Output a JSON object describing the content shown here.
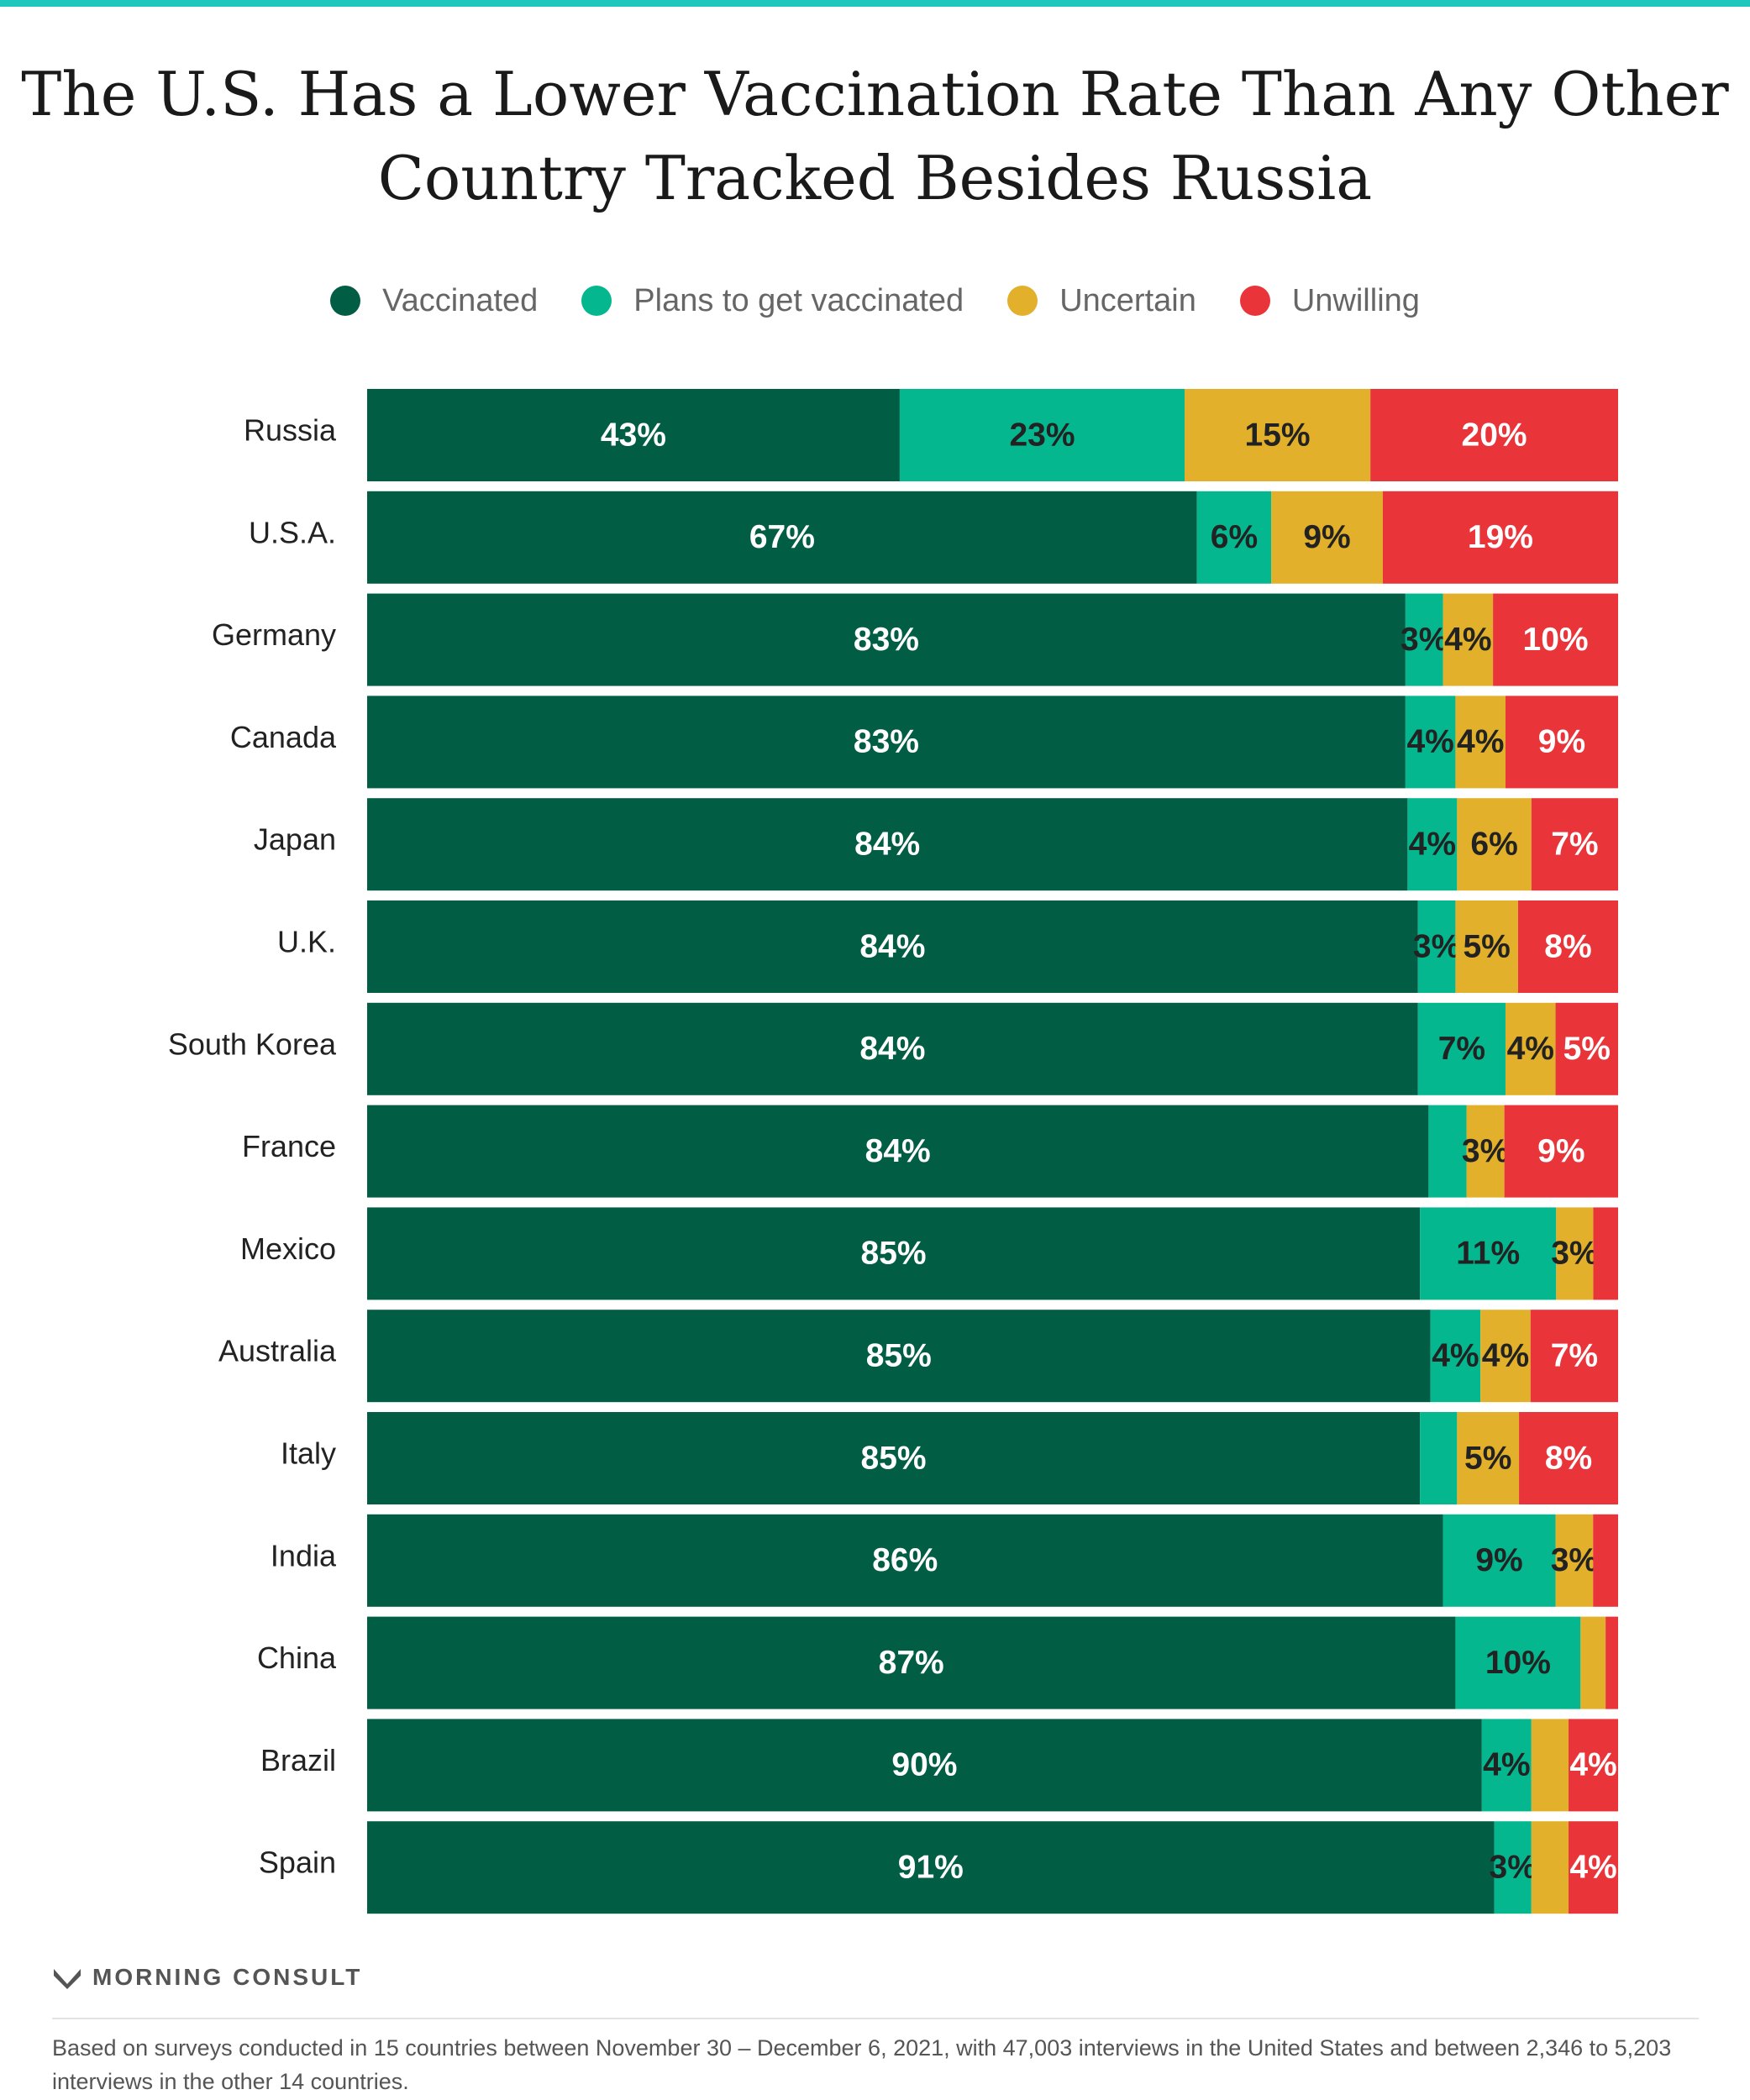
{
  "header": {
    "title_line1": "The U.S. Has a Lower Vaccination Rate Than Any Other",
    "title_line2": "Country Tracked Besides Russia"
  },
  "legend": [
    {
      "label": "Vaccinated",
      "color": "#025d45"
    },
    {
      "label": "Plans to get vaccinated",
      "color": "#05b78f"
    },
    {
      "label": "Uncertain",
      "color": "#e2b02a"
    },
    {
      "label": "Unwilling",
      "color": "#e9343a"
    }
  ],
  "chart_data": {
    "type": "bar",
    "orientation": "horizontal",
    "stacked": true,
    "categories": [
      "Russia",
      "U.S.A.",
      "Germany",
      "Canada",
      "Japan",
      "U.K.",
      "South Korea",
      "France",
      "Mexico",
      "Australia",
      "Italy",
      "India",
      "China",
      "Brazil",
      "Spain"
    ],
    "series": [
      {
        "name": "Vaccinated",
        "color": "#025d45",
        "values": [
          43,
          67,
          83,
          83,
          84,
          84,
          84,
          84,
          85,
          85,
          85,
          86,
          87,
          90,
          91
        ]
      },
      {
        "name": "Plans to get vaccinated",
        "color": "#05b78f",
        "values": [
          23,
          6,
          3,
          4,
          4,
          3,
          7,
          3,
          11,
          4,
          3,
          9,
          10,
          4,
          3
        ]
      },
      {
        "name": "Uncertain",
        "color": "#e2b02a",
        "values": [
          15,
          9,
          4,
          4,
          6,
          5,
          4,
          3,
          3,
          4,
          5,
          3,
          2,
          3,
          3
        ]
      },
      {
        "name": "Unwilling",
        "color": "#e9343a",
        "values": [
          20,
          19,
          10,
          9,
          7,
          8,
          5,
          9,
          2,
          7,
          8,
          2,
          1,
          4,
          4
        ]
      }
    ],
    "value_labels": [
      [
        "43%",
        "23%",
        "15%",
        "20%"
      ],
      [
        "67%",
        "6%",
        "9%",
        "19%"
      ],
      [
        "83%",
        "3%",
        "4%",
        "10%"
      ],
      [
        "83%",
        "4%",
        "4%",
        "9%"
      ],
      [
        "84%",
        "4%",
        "6%",
        "7%"
      ],
      [
        "84%",
        "3%",
        "5%",
        "8%"
      ],
      [
        "84%",
        "7%",
        "4%",
        "5%"
      ],
      [
        "84%",
        "",
        "3%",
        "9%"
      ],
      [
        "85%",
        "11%",
        "3%",
        ""
      ],
      [
        "85%",
        "4%",
        "4%",
        "7%"
      ],
      [
        "85%",
        "",
        "5%",
        "8%"
      ],
      [
        "86%",
        "9%",
        "3%",
        ""
      ],
      [
        "87%",
        "10%",
        "",
        ""
      ],
      [
        "90%",
        "4%",
        "",
        "4%"
      ],
      [
        "91%",
        "3%",
        "",
        "4%"
      ]
    ],
    "xlim": [
      0,
      100
    ],
    "grid": false,
    "legend_position": "top"
  },
  "footer": {
    "brand": "MORNING CONSULT",
    "note": "Based on surveys conducted in 15 countries between November 30 – December 6, 2021, with 47,003 interviews in the United States and between 2,346 to 5,203 interviews in the other 14 countries."
  }
}
